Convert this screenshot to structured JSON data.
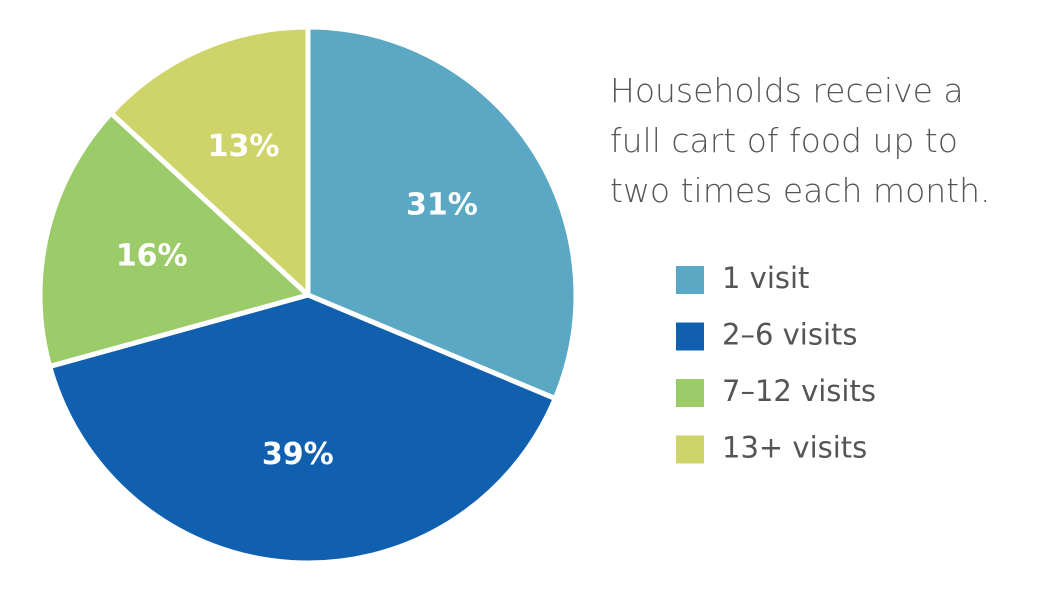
{
  "chart_data": {
    "type": "pie",
    "title": "Households receive a full cart of food up to two times each month.",
    "categories": [
      "1 visit",
      "2–6 visits",
      "7–12 visits",
      "13+ visits"
    ],
    "values": [
      31,
      39,
      16,
      13
    ],
    "value_labels": [
      "31%",
      "39%",
      "16%",
      "13%"
    ],
    "colors": [
      "#5ba8c4",
      "#1160b0",
      "#9ccb6a",
      "#cfd46a"
    ],
    "legend": "right"
  }
}
